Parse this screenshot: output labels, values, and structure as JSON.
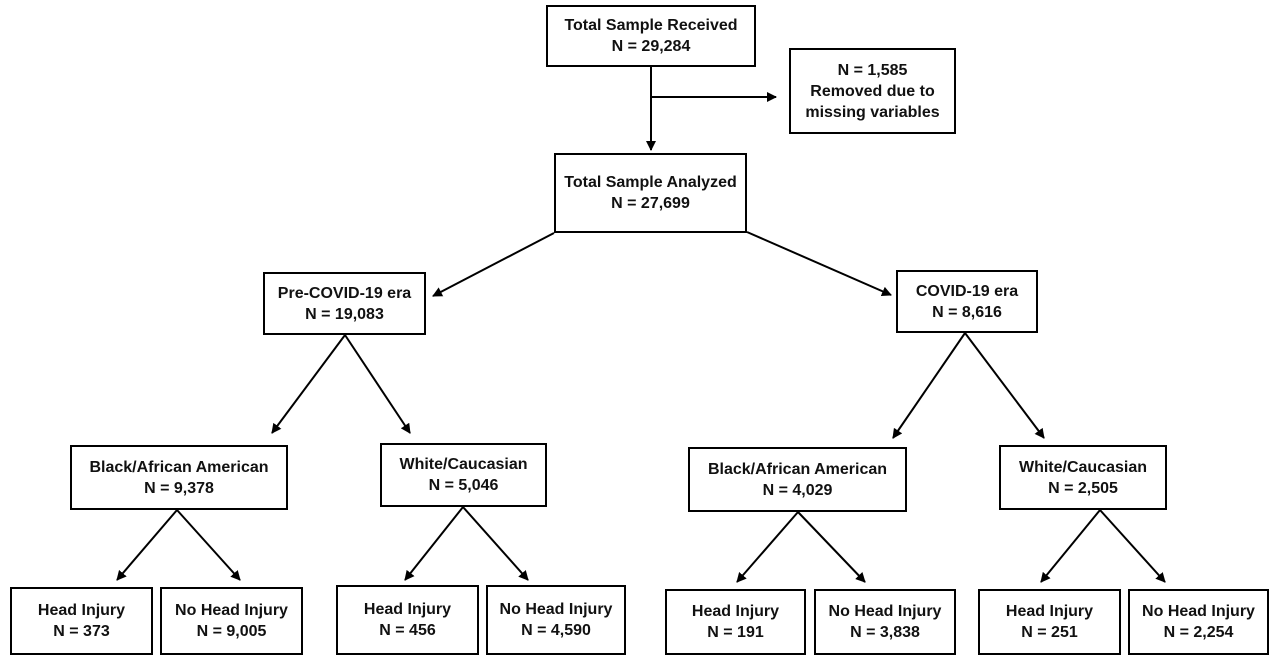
{
  "nodes": {
    "total_received": {
      "label": "Total Sample Received",
      "n": "N = 29,284"
    },
    "removed": {
      "n": "N = 1,585",
      "line1": "Removed due to",
      "line2": "missing variables"
    },
    "total_analyzed": {
      "label": "Total Sample Analyzed",
      "n": "N = 27,699"
    },
    "pre_covid": {
      "label": "Pre-COVID-19 era",
      "n": "N = 19,083"
    },
    "covid": {
      "label": "COVID-19 era",
      "n": "N = 8,616"
    },
    "pre_black": {
      "label": "Black/African American",
      "n": "N = 9,378"
    },
    "pre_white": {
      "label": "White/Caucasian",
      "n": "N = 5,046"
    },
    "covid_black": {
      "label": "Black/African American",
      "n": "N = 4,029"
    },
    "covid_white": {
      "label": "White/Caucasian",
      "n": "N = 2,505"
    },
    "pre_black_head": {
      "label": "Head Injury",
      "n": "N = 373"
    },
    "pre_black_nohead": {
      "label": "No Head Injury",
      "n": "N = 9,005"
    },
    "pre_white_head": {
      "label": "Head Injury",
      "n": "N = 456"
    },
    "pre_white_nohead": {
      "label": "No Head Injury",
      "n": "N = 4,590"
    },
    "covid_black_head": {
      "label": "Head Injury",
      "n": "N = 191"
    },
    "covid_black_nohead": {
      "label": "No Head Injury",
      "n": "N = 3,838"
    },
    "covid_white_head": {
      "label": "Head Injury",
      "n": "N = 251"
    },
    "covid_white_nohead": {
      "label": "No Head Injury",
      "n": "N = 2,254"
    }
  }
}
